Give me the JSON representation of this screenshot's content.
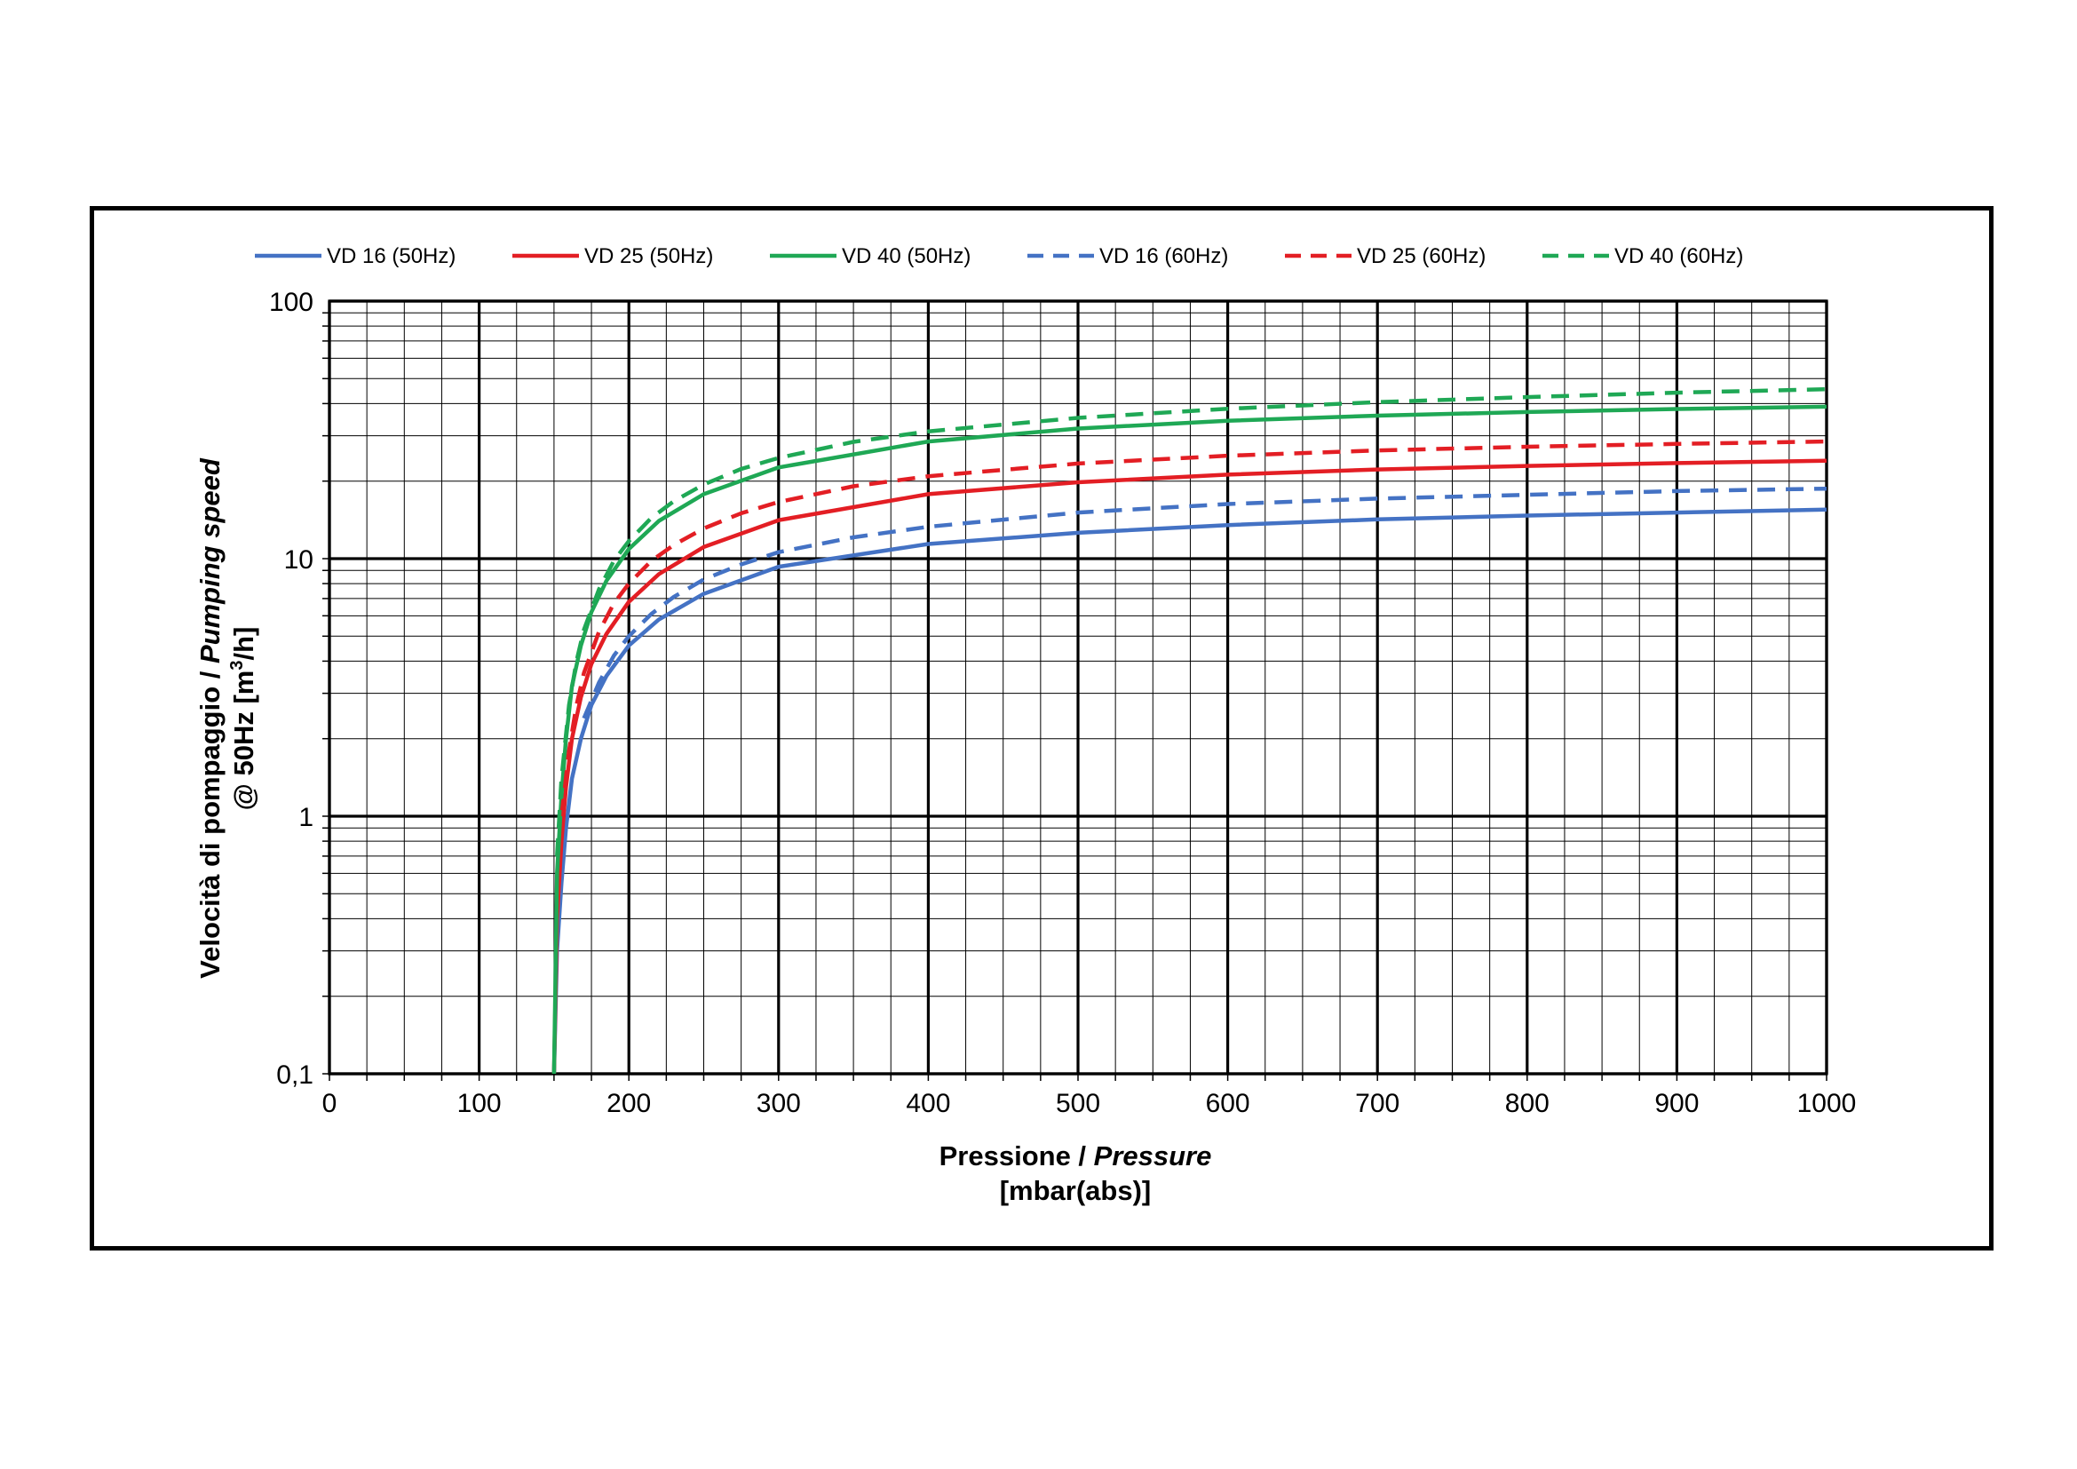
{
  "chart_data": {
    "type": "line",
    "x_scale": "linear",
    "y_scale": "log",
    "xlim": [
      0,
      1000
    ],
    "ylim": [
      0.1,
      100
    ],
    "x_ticks": [
      "0",
      "100",
      "200",
      "300",
      "400",
      "500",
      "600",
      "700",
      "800",
      "900",
      "1000"
    ],
    "y_ticks": [
      "0,1",
      "1",
      "10",
      "100"
    ],
    "xlabel": {
      "line1_regular": "Pressione / ",
      "line1_italic": "Pressure",
      "line2": "[mbar(abs)]"
    },
    "ylabel": {
      "line1_regular": "Velocità di pompaggio / ",
      "line1_italic": "Pumping speed",
      "line2_prefix": "@ 50Hz [m",
      "line2_sup": "3",
      "line2_suffix": "/h]"
    },
    "grid": true,
    "legend_position": "top",
    "series": [
      {
        "name": "VD 16 (50Hz)",
        "color": "#4472C4",
        "dash": "solid",
        "x": [
          150,
          152,
          155,
          158,
          162,
          168,
          175,
          185,
          200,
          220,
          250,
          300,
          400,
          500,
          600,
          700,
          800,
          900,
          1000
        ],
        "y": [
          0.1,
          0.3,
          0.55,
          0.9,
          1.4,
          2.0,
          2.7,
          3.5,
          4.6,
          5.8,
          7.3,
          9.3,
          11.4,
          12.6,
          13.5,
          14.2,
          14.7,
          15.1,
          15.5
        ]
      },
      {
        "name": "VD 25 (50Hz)",
        "color": "#E31E24",
        "dash": "solid",
        "x": [
          150,
          152,
          155,
          158,
          162,
          168,
          175,
          185,
          200,
          220,
          250,
          300,
          400,
          500,
          600,
          700,
          800,
          900,
          1000
        ],
        "y": [
          0.1,
          0.4,
          0.8,
          1.3,
          2.0,
          2.9,
          3.9,
          5.1,
          6.8,
          8.7,
          11.1,
          14.1,
          17.8,
          19.8,
          21.2,
          22.2,
          22.9,
          23.5,
          24.0
        ]
      },
      {
        "name": "VD 40 (50Hz)",
        "color": "#1FA855",
        "dash": "solid",
        "x": [
          150,
          152,
          155,
          158,
          162,
          168,
          175,
          185,
          200,
          220,
          250,
          300,
          400,
          500,
          600,
          700,
          800,
          900,
          1000
        ],
        "y": [
          0.1,
          0.6,
          1.2,
          2.0,
          3.2,
          4.6,
          6.2,
          8.2,
          10.9,
          14.0,
          17.8,
          22.6,
          28.5,
          32.0,
          34.3,
          35.9,
          37.1,
          38.1,
          38.9
        ]
      },
      {
        "name": "VD 16 (60Hz)",
        "color": "#4472C4",
        "dash": "dashed",
        "x": [
          170,
          180,
          190,
          200,
          215,
          230,
          250,
          275,
          300,
          350,
          400,
          500,
          600,
          700,
          800,
          900,
          1000
        ],
        "y": [
          2.4,
          3.3,
          4.2,
          5.0,
          6.1,
          7.1,
          8.3,
          9.5,
          10.6,
          12.1,
          13.3,
          15.1,
          16.3,
          17.1,
          17.7,
          18.3,
          18.7
        ]
      },
      {
        "name": "VD 25 (60Hz)",
        "color": "#E31E24",
        "dash": "dashed",
        "x": [
          155,
          160,
          165,
          170,
          180,
          190,
          200,
          215,
          230,
          250,
          275,
          300,
          350,
          400,
          500,
          600,
          700,
          800,
          900,
          1000
        ],
        "y": [
          1.0,
          1.8,
          2.7,
          3.6,
          5.2,
          6.7,
          8.0,
          9.8,
          11.3,
          13.1,
          15.0,
          16.6,
          19.1,
          20.9,
          23.4,
          25.1,
          26.3,
          27.2,
          27.9,
          28.5
        ]
      },
      {
        "name": "VD 40 (60Hz)",
        "color": "#1FA855",
        "dash": "dashed",
        "x": [
          152,
          155,
          160,
          165,
          170,
          180,
          190,
          200,
          215,
          230,
          250,
          275,
          300,
          350,
          400,
          500,
          600,
          700,
          800,
          900,
          1000
        ],
        "y": [
          0.7,
          1.4,
          2.7,
          4.0,
          5.3,
          7.6,
          9.8,
          11.7,
          14.4,
          16.7,
          19.4,
          22.3,
          24.6,
          28.4,
          31.2,
          35.2,
          38.2,
          40.5,
          42.4,
          44.1,
          45.5
        ]
      }
    ]
  }
}
